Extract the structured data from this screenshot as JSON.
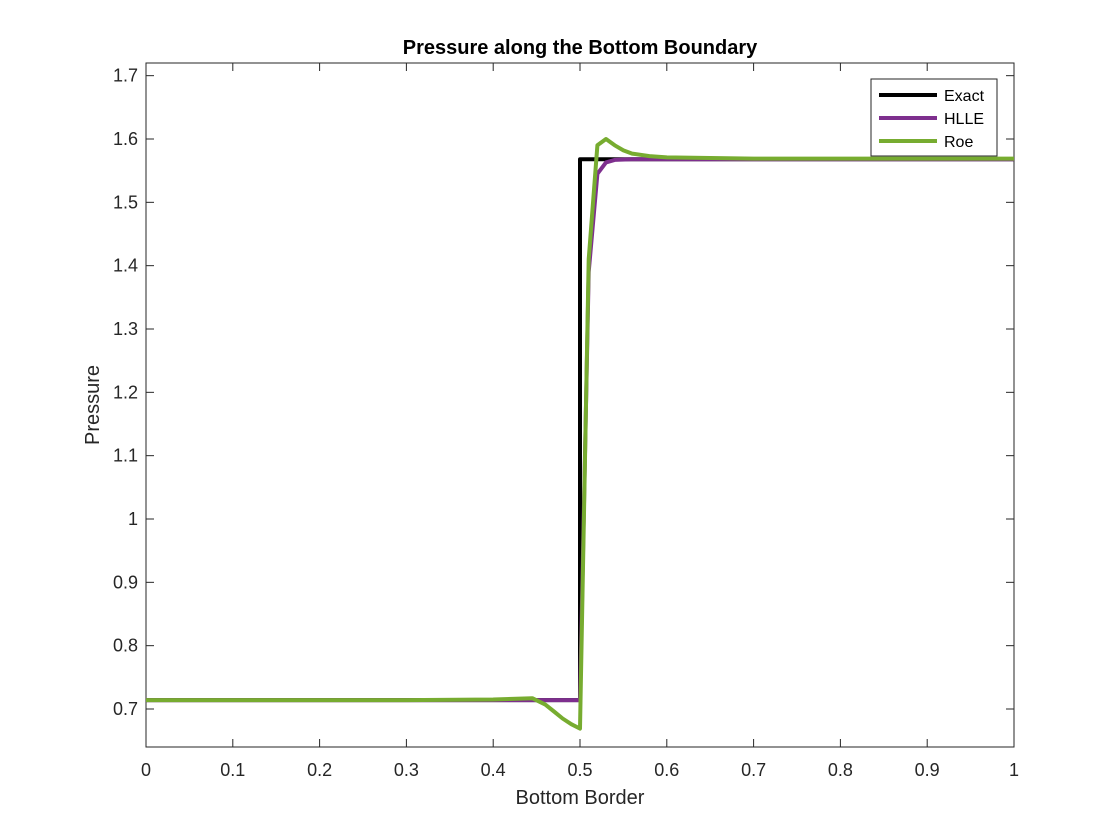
{
  "chart_data": {
    "type": "line",
    "title": "Pressure along the Bottom Boundary",
    "xlabel": "Bottom Border",
    "ylabel": "Pressure",
    "xlim": [
      0,
      1
    ],
    "ylim": [
      0.64,
      1.72
    ],
    "xticks": [
      0,
      0.1,
      0.2,
      0.3,
      0.4,
      0.5,
      0.6,
      0.7,
      0.8,
      0.9,
      1
    ],
    "xtick_labels": [
      "0",
      "0.1",
      "0.2",
      "0.3",
      "0.4",
      "0.5",
      "0.6",
      "0.7",
      "0.8",
      "0.9",
      "1"
    ],
    "yticks": [
      0.7,
      0.8,
      0.9,
      1,
      1.1,
      1.2,
      1.3,
      1.4,
      1.5,
      1.6,
      1.7
    ],
    "ytick_labels": [
      "0.7",
      "0.8",
      "0.9",
      "1",
      "1.1",
      "1.2",
      "1.3",
      "1.4",
      "1.5",
      "1.6",
      "1.7"
    ],
    "grid": false,
    "legend_position": "top-right",
    "series": [
      {
        "name": "Exact",
        "color": "#000000",
        "x": [
          0,
          0.5,
          0.5,
          1
        ],
        "y": [
          0.714,
          0.714,
          1.568,
          1.568
        ]
      },
      {
        "name": "HLLE",
        "color": "#7e2f8e",
        "x": [
          0,
          0.4,
          0.45,
          0.49,
          0.5,
          0.51,
          0.52,
          0.53,
          0.54,
          0.56,
          0.6,
          0.7,
          1
        ],
        "y": [
          0.714,
          0.714,
          0.714,
          0.714,
          0.714,
          1.39,
          1.545,
          1.563,
          1.567,
          1.568,
          1.568,
          1.568,
          1.568
        ]
      },
      {
        "name": "Roe",
        "color": "#77ac30",
        "x": [
          0,
          0.3,
          0.4,
          0.445,
          0.46,
          0.47,
          0.48,
          0.49,
          0.5,
          0.51,
          0.52,
          0.53,
          0.54,
          0.55,
          0.56,
          0.58,
          0.6,
          0.65,
          0.7,
          1
        ],
        "y": [
          0.714,
          0.714,
          0.715,
          0.717,
          0.707,
          0.696,
          0.685,
          0.676,
          0.669,
          1.41,
          1.59,
          1.6,
          1.59,
          1.582,
          1.577,
          1.573,
          1.571,
          1.57,
          1.569,
          1.569
        ]
      }
    ]
  }
}
